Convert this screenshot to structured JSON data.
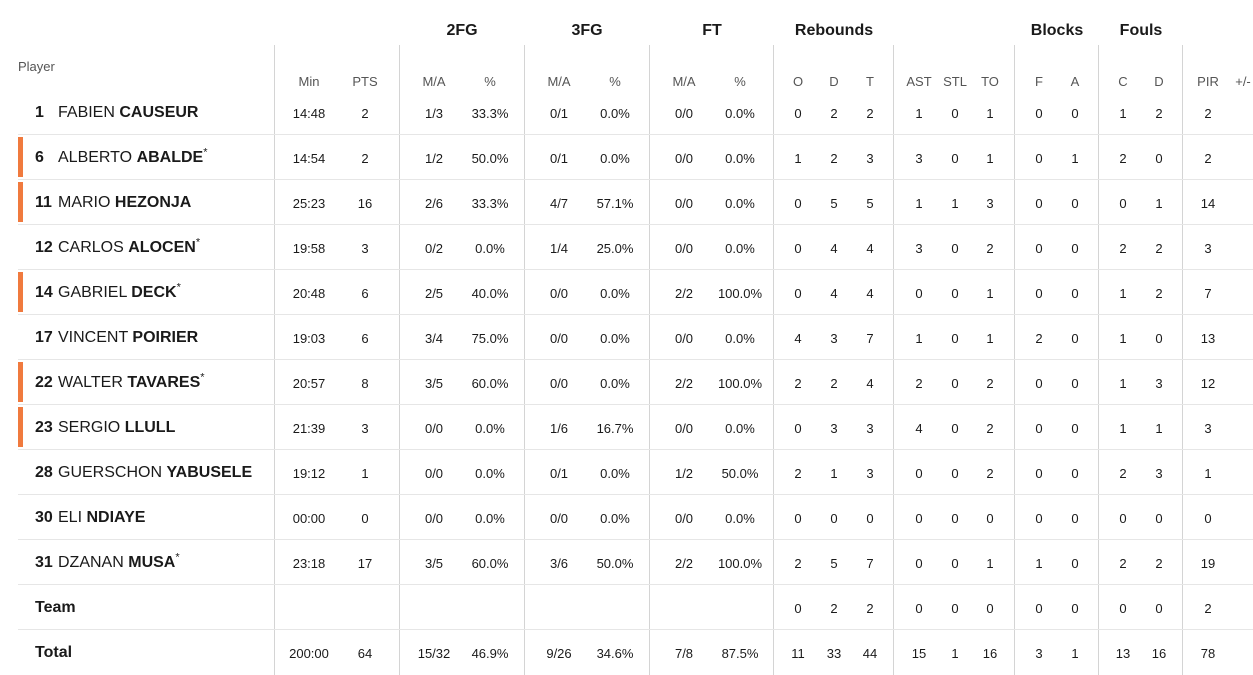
{
  "groups": [
    {
      "label": "2FG",
      "x": 462
    },
    {
      "label": "3FG",
      "x": 587
    },
    {
      "label": "FT",
      "x": 712
    },
    {
      "label": "Rebounds",
      "x": 834
    },
    {
      "label": "Blocks",
      "x": 1057
    },
    {
      "label": "Fouls",
      "x": 1141
    }
  ],
  "player_header": "Player",
  "columns": [
    {
      "key": "min",
      "label": "Min",
      "x": 309
    },
    {
      "key": "pts",
      "label": "PTS",
      "x": 365
    },
    {
      "key": "fg2",
      "label": "M/A",
      "x": 434
    },
    {
      "key": "fg2p",
      "label": "%",
      "x": 490
    },
    {
      "key": "fg3",
      "label": "M/A",
      "x": 559
    },
    {
      "key": "fg3p",
      "label": "%",
      "x": 615
    },
    {
      "key": "ft",
      "label": "M/A",
      "x": 684
    },
    {
      "key": "ftp",
      "label": "%",
      "x": 740
    },
    {
      "key": "o",
      "label": "O",
      "x": 798
    },
    {
      "key": "d",
      "label": "D",
      "x": 834
    },
    {
      "key": "t",
      "label": "T",
      "x": 870
    },
    {
      "key": "ast",
      "label": "AST",
      "x": 919
    },
    {
      "key": "stl",
      "label": "STL",
      "x": 955
    },
    {
      "key": "to",
      "label": "TO",
      "x": 990
    },
    {
      "key": "bf",
      "label": "F",
      "x": 1039
    },
    {
      "key": "ba",
      "label": "A",
      "x": 1075
    },
    {
      "key": "fc",
      "label": "C",
      "x": 1123
    },
    {
      "key": "fd",
      "label": "D",
      "x": 1159
    },
    {
      "key": "pir",
      "label": "PIR",
      "x": 1208
    },
    {
      "key": "pm",
      "label": "+/-",
      "x": 1243
    }
  ],
  "players": [
    {
      "num": "1",
      "first": "FABIEN",
      "last": "CAUSEUR",
      "star": false,
      "starter": false,
      "stats": [
        "14:48",
        "2",
        "1/3",
        "33.3%",
        "0/1",
        "0.0%",
        "0/0",
        "0.0%",
        "0",
        "2",
        "2",
        "1",
        "0",
        "1",
        "0",
        "0",
        "1",
        "2",
        "2",
        ""
      ]
    },
    {
      "num": "6",
      "first": "ALBERTO",
      "last": "ABALDE",
      "star": true,
      "starter": true,
      "stats": [
        "14:54",
        "2",
        "1/2",
        "50.0%",
        "0/1",
        "0.0%",
        "0/0",
        "0.0%",
        "1",
        "2",
        "3",
        "3",
        "0",
        "1",
        "0",
        "1",
        "2",
        "0",
        "2",
        ""
      ]
    },
    {
      "num": "11",
      "first": "MARIO",
      "last": "HEZONJA",
      "star": false,
      "starter": true,
      "stats": [
        "25:23",
        "16",
        "2/6",
        "33.3%",
        "4/7",
        "57.1%",
        "0/0",
        "0.0%",
        "0",
        "5",
        "5",
        "1",
        "1",
        "3",
        "0",
        "0",
        "0",
        "1",
        "14",
        ""
      ]
    },
    {
      "num": "12",
      "first": "CARLOS",
      "last": "ALOCEN",
      "star": true,
      "starter": false,
      "stats": [
        "19:58",
        "3",
        "0/2",
        "0.0%",
        "1/4",
        "25.0%",
        "0/0",
        "0.0%",
        "0",
        "4",
        "4",
        "3",
        "0",
        "2",
        "0",
        "0",
        "2",
        "2",
        "3",
        ""
      ]
    },
    {
      "num": "14",
      "first": "GABRIEL",
      "last": "DECK",
      "star": true,
      "starter": true,
      "stats": [
        "20:48",
        "6",
        "2/5",
        "40.0%",
        "0/0",
        "0.0%",
        "2/2",
        "100.0%",
        "0",
        "4",
        "4",
        "0",
        "0",
        "1",
        "0",
        "0",
        "1",
        "2",
        "7",
        ""
      ]
    },
    {
      "num": "17",
      "first": "VINCENT",
      "last": "POIRIER",
      "star": false,
      "starter": false,
      "stats": [
        "19:03",
        "6",
        "3/4",
        "75.0%",
        "0/0",
        "0.0%",
        "0/0",
        "0.0%",
        "4",
        "3",
        "7",
        "1",
        "0",
        "1",
        "2",
        "0",
        "1",
        "0",
        "13",
        ""
      ]
    },
    {
      "num": "22",
      "first": "WALTER",
      "last": "TAVARES",
      "star": true,
      "starter": true,
      "stats": [
        "20:57",
        "8",
        "3/5",
        "60.0%",
        "0/0",
        "0.0%",
        "2/2",
        "100.0%",
        "2",
        "2",
        "4",
        "2",
        "0",
        "2",
        "0",
        "0",
        "1",
        "3",
        "12",
        ""
      ]
    },
    {
      "num": "23",
      "first": "SERGIO",
      "last": "LLULL",
      "star": false,
      "starter": true,
      "stats": [
        "21:39",
        "3",
        "0/0",
        "0.0%",
        "1/6",
        "16.7%",
        "0/0",
        "0.0%",
        "0",
        "3",
        "3",
        "4",
        "0",
        "2",
        "0",
        "0",
        "1",
        "1",
        "3",
        ""
      ]
    },
    {
      "num": "28",
      "first": "GUERSCHON",
      "last": "YABUSELE",
      "star": false,
      "starter": false,
      "stats": [
        "19:12",
        "1",
        "0/0",
        "0.0%",
        "0/1",
        "0.0%",
        "1/2",
        "50.0%",
        "2",
        "1",
        "3",
        "0",
        "0",
        "2",
        "0",
        "0",
        "2",
        "3",
        "1",
        ""
      ]
    },
    {
      "num": "30",
      "first": "ELI",
      "last": "NDIAYE",
      "star": false,
      "starter": false,
      "stats": [
        "00:00",
        "0",
        "0/0",
        "0.0%",
        "0/0",
        "0.0%",
        "0/0",
        "0.0%",
        "0",
        "0",
        "0",
        "0",
        "0",
        "0",
        "0",
        "0",
        "0",
        "0",
        "0",
        ""
      ]
    },
    {
      "num": "31",
      "first": "DZANAN",
      "last": "MUSA",
      "star": true,
      "starter": false,
      "stats": [
        "23:18",
        "17",
        "3/5",
        "60.0%",
        "3/6",
        "50.0%",
        "2/2",
        "100.0%",
        "2",
        "5",
        "7",
        "0",
        "0",
        "1",
        "1",
        "0",
        "2",
        "2",
        "19",
        ""
      ]
    }
  ],
  "team": {
    "label": "Team",
    "stats": [
      "",
      "",
      "",
      "",
      "",
      "",
      "",
      "",
      "0",
      "2",
      "2",
      "0",
      "0",
      "0",
      "0",
      "0",
      "0",
      "0",
      "2",
      ""
    ]
  },
  "total": {
    "label": "Total",
    "stats": [
      "200:00",
      "64",
      "15/32",
      "46.9%",
      "9/26",
      "34.6%",
      "7/8",
      "87.5%",
      "11",
      "33",
      "44",
      "15",
      "1",
      "16",
      "3",
      "1",
      "13",
      "16",
      "78",
      ""
    ]
  },
  "colors": {
    "starter_bar": "#f07a3e",
    "divider": "#d4d4d4",
    "row_separator": "#e6e6e6"
  }
}
